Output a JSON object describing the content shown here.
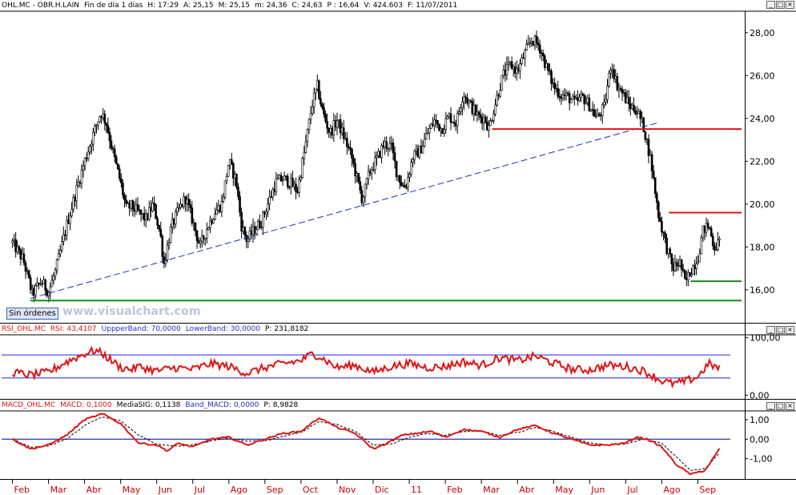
{
  "main_header": {
    "symbol": "OHL.MC - OBR.H.LAIN",
    "period": "Fin de día 1 días",
    "high": "H: 17:29",
    "a": "A: 25,15",
    "m": "M: 25,15",
    "low": "m: 24,36",
    "close": "C: 24,63",
    "p": "P : 16,64",
    "volume": "V: 424.603",
    "date": "F: 11/07/2011"
  },
  "rsi_header": {
    "name": "RSI_OHL.MC",
    "value": "RSI: 43,4107",
    "upper": "UppperBand: 70,0000",
    "lower": "LowerBand: 30,0000",
    "p": "P: 231,8182"
  },
  "macd_header": {
    "name": "MACD_OHL.MC",
    "value": "MACD: 0,1000",
    "signal": "MediaSIG: 0,1138",
    "band": "Band_MACD: 0,0000",
    "p": "P: 8,9828"
  },
  "window_buttons": [
    "_",
    "□",
    "×"
  ],
  "sin_ordenes_label": "Sin órdenes",
  "watermark": "www.visualchart.com",
  "colors": {
    "price": "#000000",
    "trendline": "#1c2fc8",
    "resistance": "#e01414",
    "support_green": "#1a8a1a",
    "rsi_line": "#e01414",
    "rsi_bands": "#2424d0",
    "macd_line": "#e01414",
    "macd_signal": "#000000",
    "macd_zero": "#000080"
  },
  "chart_data": [
    {
      "type": "candlestick",
      "title": "OHL.MC - OBR.H.LAIN",
      "ylim": [
        14.5,
        29
      ],
      "y_ticks": [
        "28,00",
        "26,00",
        "24,00",
        "22,00",
        "20,00",
        "18,00",
        "16,00"
      ],
      "y_tick_values": [
        28,
        26,
        24,
        22,
        20,
        18,
        16
      ],
      "x_tick_labels": [
        "Feb",
        "Mar",
        "Abr",
        "May",
        "Jun",
        "Jul",
        "Ago",
        "Sep",
        "Oct",
        "Nov",
        "Dic",
        "11",
        "Feb",
        "Mar",
        "Abr",
        "May",
        "Jun",
        "Jul",
        "Ago",
        "Sep"
      ],
      "x_tick_month_index": [
        0,
        1,
        2,
        3,
        4,
        5,
        6,
        7,
        8,
        9,
        10,
        11,
        12,
        13,
        14,
        15,
        16,
        17,
        18,
        19
      ],
      "x_range_months": [
        -0.3,
        20.3
      ],
      "price_path": [
        [
          0,
          18.2
        ],
        [
          0.3,
          17.4
        ],
        [
          0.55,
          15.8
        ],
        [
          0.8,
          16.4
        ],
        [
          1.0,
          15.9
        ],
        [
          1.2,
          16.9
        ],
        [
          1.5,
          19.0
        ],
        [
          1.8,
          20.8
        ],
        [
          2.0,
          22.0
        ],
        [
          2.25,
          23.3
        ],
        [
          2.45,
          24.3
        ],
        [
          2.6,
          23.8
        ],
        [
          2.8,
          22.3
        ],
        [
          3.0,
          21.0
        ],
        [
          3.15,
          19.8
        ],
        [
          3.3,
          19.9
        ],
        [
          3.5,
          19.6
        ],
        [
          3.7,
          19.3
        ],
        [
          3.9,
          20.0
        ],
        [
          4.1,
          18.6
        ],
        [
          4.2,
          17.2
        ],
        [
          4.4,
          18.9
        ],
        [
          4.6,
          19.7
        ],
        [
          4.8,
          20.3
        ],
        [
          5.0,
          19.2
        ],
        [
          5.2,
          18.0
        ],
        [
          5.4,
          18.9
        ],
        [
          5.6,
          19.6
        ],
        [
          5.8,
          20.0
        ],
        [
          6.0,
          22.0
        ],
        [
          6.2,
          21.1
        ],
        [
          6.35,
          19.0
        ],
        [
          6.5,
          18.3
        ],
        [
          6.7,
          18.8
        ],
        [
          6.9,
          19.2
        ],
        [
          7.1,
          20.1
        ],
        [
          7.3,
          21.0
        ],
        [
          7.5,
          21.2
        ],
        [
          7.7,
          21.0
        ],
        [
          7.9,
          20.6
        ],
        [
          8.1,
          22.5
        ],
        [
          8.3,
          24.6
        ],
        [
          8.45,
          25.5
        ],
        [
          8.6,
          24.3
        ],
        [
          8.8,
          23.3
        ],
        [
          9.0,
          23.9
        ],
        [
          9.2,
          23.1
        ],
        [
          9.4,
          22.2
        ],
        [
          9.55,
          21.2
        ],
        [
          9.7,
          20.2
        ],
        [
          9.9,
          21.5
        ],
        [
          10.1,
          22.1
        ],
        [
          10.3,
          22.8
        ],
        [
          10.5,
          22.7
        ],
        [
          10.65,
          21.5
        ],
        [
          10.8,
          20.9
        ],
        [
          10.9,
          20.8
        ],
        [
          11.1,
          22.2
        ],
        [
          11.3,
          22.5
        ],
        [
          11.5,
          23.3
        ],
        [
          11.7,
          23.9
        ],
        [
          11.9,
          23.5
        ],
        [
          12.1,
          24.1
        ],
        [
          12.3,
          23.8
        ],
        [
          12.5,
          25.2
        ],
        [
          12.7,
          24.6
        ],
        [
          12.9,
          24.1
        ],
        [
          13.1,
          24.0
        ],
        [
          13.2,
          23.5
        ],
        [
          13.4,
          24.8
        ],
        [
          13.6,
          26.0
        ],
        [
          13.8,
          26.5
        ],
        [
          14.0,
          26.2
        ],
        [
          14.2,
          27.0
        ],
        [
          14.4,
          27.7
        ],
        [
          14.6,
          27.4
        ],
        [
          14.8,
          26.4
        ],
        [
          15.0,
          25.5
        ],
        [
          15.2,
          25.1
        ],
        [
          15.4,
          25.0
        ],
        [
          15.6,
          24.7
        ],
        [
          15.8,
          25.0
        ],
        [
          16.0,
          24.6
        ],
        [
          16.2,
          24.0
        ],
        [
          16.4,
          24.5
        ],
        [
          16.6,
          26.6
        ],
        [
          16.75,
          25.6
        ],
        [
          16.9,
          25.2
        ],
        [
          17.1,
          24.6
        ],
        [
          17.3,
          24.4
        ],
        [
          17.5,
          23.6
        ],
        [
          17.7,
          22.0
        ],
        [
          17.9,
          19.6
        ],
        [
          18.1,
          18.2
        ],
        [
          18.3,
          17.0
        ],
        [
          18.5,
          17.3
        ],
        [
          18.65,
          16.3
        ],
        [
          18.8,
          16.9
        ],
        [
          19.0,
          17.5
        ],
        [
          19.15,
          18.8
        ],
        [
          19.3,
          19.0
        ],
        [
          19.45,
          18.0
        ],
        [
          19.6,
          18.2
        ]
      ],
      "candle_noise_amplitude": 0.55,
      "trendline": {
        "from": [
          0.5,
          15.6
        ],
        "to": [
          17.9,
          23.8
        ]
      },
      "resistance_lines": [
        {
          "y": 23.5,
          "from_month": 13.3,
          "to_month": 20.3
        },
        {
          "y": 19.6,
          "from_month": 18.2,
          "to_month": 20.3
        }
      ],
      "support_lines": [
        {
          "y": 16.4,
          "from_month": 18.8,
          "to_month": 20.3
        },
        {
          "y": 15.5,
          "from_month": 0.5,
          "to_month": 20.3
        }
      ]
    },
    {
      "type": "line",
      "title": "RSI_OHL.MC",
      "ylim": [
        -5,
        105
      ],
      "y_ticks": [
        "100,00",
        "0,00"
      ],
      "y_tick_values": [
        100,
        0
      ],
      "bands": [
        70,
        30
      ],
      "series": [
        {
          "name": "RSI",
          "x": [
            0,
            0.5,
            1.0,
            1.5,
            2.0,
            2.3,
            2.5,
            3.0,
            3.3,
            3.5,
            4.0,
            4.5,
            5.0,
            5.5,
            6.0,
            6.5,
            7.0,
            7.5,
            8.0,
            8.3,
            8.5,
            9.0,
            9.5,
            10.0,
            10.5,
            11.0,
            11.5,
            12.0,
            12.5,
            13.0,
            13.5,
            14.0,
            14.5,
            15.0,
            15.5,
            16.0,
            16.5,
            17.0,
            17.5,
            18.0,
            18.3,
            18.6,
            19.0,
            19.3,
            19.6
          ],
          "y": [
            40,
            35,
            40,
            58,
            72,
            78,
            72,
            48,
            45,
            50,
            42,
            48,
            45,
            55,
            50,
            38,
            48,
            55,
            60,
            72,
            68,
            48,
            52,
            40,
            50,
            55,
            48,
            50,
            58,
            52,
            65,
            60,
            68,
            56,
            45,
            44,
            52,
            50,
            42,
            25,
            20,
            23,
            32,
            55,
            46
          ]
        }
      ]
    },
    {
      "type": "line",
      "title": "MACD_OHL.MC",
      "ylim": [
        -2.0,
        1.45
      ],
      "y_ticks": [
        "1,00",
        "0,00",
        "-1,00"
      ],
      "y_tick_values": [
        1,
        0,
        -1
      ],
      "zero_line": 0,
      "series": [
        {
          "name": "MACD",
          "x": [
            0,
            0.5,
            1.0,
            1.5,
            2.0,
            2.5,
            3.0,
            3.5,
            4.0,
            4.3,
            4.6,
            5.0,
            5.5,
            6.0,
            6.5,
            7.0,
            7.5,
            8.0,
            8.5,
            9.0,
            9.5,
            10.0,
            10.4,
            10.8,
            11.2,
            11.6,
            12.0,
            12.5,
            13.0,
            13.5,
            14.0,
            14.5,
            15.0,
            15.5,
            16.0,
            16.5,
            17.0,
            17.3,
            17.6,
            18.0,
            18.4,
            18.8,
            19.2,
            19.6
          ],
          "y": [
            0.0,
            -0.5,
            -0.3,
            0.2,
            1.0,
            1.3,
            0.8,
            -0.2,
            -0.3,
            -0.6,
            -0.2,
            -0.4,
            0.0,
            0.1,
            -0.3,
            0.0,
            0.3,
            0.4,
            1.1,
            0.6,
            0.3,
            -0.5,
            -0.2,
            0.2,
            0.3,
            0.4,
            0.1,
            0.5,
            0.4,
            0.1,
            0.5,
            0.7,
            0.3,
            0.0,
            -0.3,
            -0.3,
            -0.2,
            0.1,
            0.0,
            -0.4,
            -1.3,
            -1.8,
            -1.6,
            -0.5
          ]
        },
        {
          "name": "MediaSIG",
          "x": [
            0,
            0.5,
            1.0,
            1.5,
            2.0,
            2.5,
            3.0,
            3.5,
            4.0,
            4.5,
            5.0,
            5.5,
            6.0,
            6.5,
            7.0,
            7.5,
            8.0,
            8.5,
            9.0,
            9.5,
            10.0,
            10.5,
            11.0,
            11.5,
            12.0,
            12.5,
            13.0,
            13.5,
            14.0,
            14.5,
            15.0,
            15.5,
            16.0,
            16.5,
            17.0,
            17.5,
            18.0,
            18.4,
            18.8,
            19.2,
            19.6
          ],
          "y": [
            0.0,
            -0.4,
            -0.35,
            0.0,
            0.7,
            1.15,
            0.95,
            0.2,
            -0.25,
            -0.35,
            -0.3,
            -0.1,
            0.05,
            -0.1,
            -0.1,
            0.15,
            0.35,
            0.9,
            0.75,
            0.4,
            -0.3,
            -0.25,
            0.1,
            0.3,
            0.2,
            0.4,
            0.4,
            0.2,
            0.35,
            0.6,
            0.4,
            0.1,
            -0.2,
            -0.3,
            -0.25,
            0.0,
            -0.2,
            -0.9,
            -1.6,
            -1.5,
            -0.7
          ]
        }
      ]
    }
  ]
}
